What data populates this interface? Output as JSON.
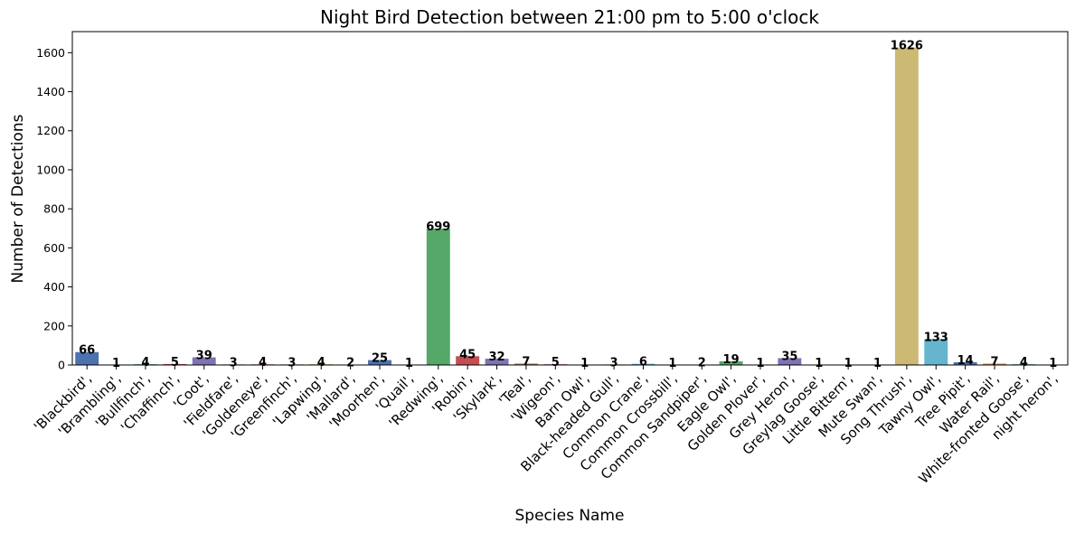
{
  "chart_data": {
    "type": "bar",
    "title": "Night Bird Detection between 21:00 pm to 5:00 o'clock",
    "xlabel": "Species Name",
    "ylabel": "Number of Detections",
    "ylim": [
      0,
      1708
    ],
    "yticks": [
      0,
      200,
      400,
      600,
      800,
      1000,
      1200,
      1400,
      1600
    ],
    "grid": false,
    "categories": [
      "'Blackbird',",
      "'Brambling',",
      "'Bullfinch',",
      "'Chaffinch',",
      "'Coot',",
      "'Fieldfare',",
      "'Goldeneye',",
      "'Greenfinch',",
      "'Lapwing',",
      "'Mallard',",
      "'Moorhen',",
      "'Quail',",
      "'Redwing',",
      "'Robin',",
      "'Skylark',",
      "'Teal',",
      "'Wigeon',",
      "Barn Owl',",
      "Black-headed Gull',",
      "Common Crane',",
      "Common Crossbill',",
      "Common Sandpiper',",
      "Eagle Owl',",
      "Golden Plover',",
      "Grey Heron',",
      "Greylag Goose',",
      "Little Bittern',",
      "Mute Swan',",
      "Song Thrush',",
      "Tawny Owl',",
      "Tree Pipit',",
      "Water Rail',",
      "White-fronted Goose',",
      "night heron',"
    ],
    "values": [
      66,
      1,
      4,
      5,
      39,
      3,
      4,
      3,
      4,
      2,
      25,
      1,
      699,
      45,
      32,
      7,
      5,
      1,
      3,
      6,
      1,
      2,
      19,
      1,
      35,
      1,
      1,
      1,
      1626,
      133,
      14,
      7,
      4,
      1
    ],
    "colors": [
      "#4c72b0",
      "#dd8452",
      "#55a868",
      "#c44e52",
      "#8172b3",
      "#937860",
      "#da8bc3",
      "#8c8c8c",
      "#ccb974",
      "#64b5cd"
    ]
  }
}
